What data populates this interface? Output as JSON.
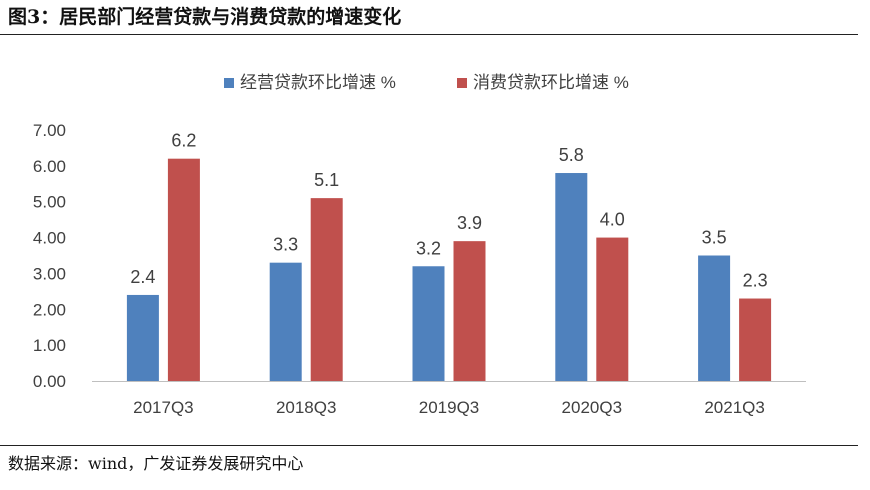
{
  "header": {
    "title": "图3：居民部门经营贷款与消费贷款的增速变化"
  },
  "footer": {
    "source": "数据来源：wind，广发证券发展研究中心"
  },
  "colors": {
    "series1": "#4F81BD",
    "series2": "#C0504D",
    "axis": "#bfbfbf",
    "text": "#404040"
  },
  "chart_data": {
    "type": "bar",
    "categories": [
      "2017Q3",
      "2018Q3",
      "2019Q3",
      "2020Q3",
      "2021Q3"
    ],
    "series": [
      {
        "name": "经营贷款环比增速 %",
        "values": [
          2.4,
          3.3,
          3.2,
          5.8,
          3.5
        ],
        "labels": [
          "2.4",
          "3.3",
          "3.2",
          "5.8",
          "3.5"
        ]
      },
      {
        "name": "消费贷款环比增速 %",
        "values": [
          6.2,
          5.1,
          3.9,
          4.0,
          2.3
        ],
        "labels": [
          "6.2",
          "5.1",
          "3.9",
          "4.0",
          "2.3"
        ]
      }
    ],
    "yticks": [
      "0.00",
      "1.00",
      "2.00",
      "3.00",
      "4.00",
      "5.00",
      "6.00",
      "7.00"
    ],
    "ylim": [
      0,
      7
    ],
    "grid": false,
    "legend_position": "top-center"
  }
}
